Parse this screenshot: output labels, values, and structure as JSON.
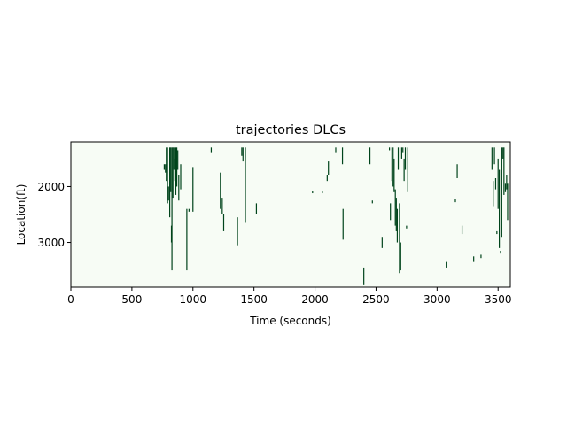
{
  "chart_data": {
    "type": "heatmap",
    "title": "trajectories DLCs",
    "xlabel": "Time (seconds)",
    "ylabel": "Location(ft)",
    "xlim": [
      0,
      3600
    ],
    "ylim": [
      3800,
      1200
    ],
    "x_ticks": [
      0,
      500,
      1000,
      1500,
      2000,
      2500,
      3000,
      3500
    ],
    "y_ticks": [
      2000,
      3000
    ],
    "colors": {
      "background": "#f7fcf5",
      "mark": "#00441b",
      "axis": "#000000"
    },
    "segments": [
      {
        "t": 765,
        "y0": 1600,
        "y1": 1700
      },
      {
        "t": 775,
        "y0": 1600,
        "y1": 1750
      },
      {
        "t": 782,
        "y0": 1300,
        "y1": 1900
      },
      {
        "t": 792,
        "y0": 1300,
        "y1": 2300
      },
      {
        "t": 800,
        "y0": 2000,
        "y1": 2250
      },
      {
        "t": 810,
        "y0": 1300,
        "y1": 2550
      },
      {
        "t": 818,
        "y0": 1300,
        "y1": 2100
      },
      {
        "t": 824,
        "y0": 2700,
        "y1": 3000
      },
      {
        "t": 828,
        "y0": 1300,
        "y1": 3500
      },
      {
        "t": 836,
        "y0": 1300,
        "y1": 2200
      },
      {
        "t": 844,
        "y0": 1300,
        "y1": 1700
      },
      {
        "t": 852,
        "y0": 1500,
        "y1": 1900
      },
      {
        "t": 860,
        "y0": 1300,
        "y1": 2150
      },
      {
        "t": 868,
        "y0": 1300,
        "y1": 2000
      },
      {
        "t": 876,
        "y0": 1350,
        "y1": 1700
      },
      {
        "t": 884,
        "y0": 1800,
        "y1": 2250
      },
      {
        "t": 900,
        "y0": 1600,
        "y1": 2050
      },
      {
        "t": 950,
        "y0": 2400,
        "y1": 3500
      },
      {
        "t": 968,
        "y0": 2400,
        "y1": 2450
      },
      {
        "t": 1000,
        "y0": 1650,
        "y1": 2450
      },
      {
        "t": 1150,
        "y0": 1300,
        "y1": 1400
      },
      {
        "t": 1225,
        "y0": 1750,
        "y1": 2400
      },
      {
        "t": 1240,
        "y0": 2200,
        "y1": 2500
      },
      {
        "t": 1252,
        "y0": 2500,
        "y1": 2800
      },
      {
        "t": 1365,
        "y0": 2550,
        "y1": 3050
      },
      {
        "t": 1400,
        "y0": 1300,
        "y1": 1450
      },
      {
        "t": 1410,
        "y0": 1300,
        "y1": 1550
      },
      {
        "t": 1430,
        "y0": 1300,
        "y1": 2650
      },
      {
        "t": 1520,
        "y0": 2300,
        "y1": 2500
      },
      {
        "t": 1980,
        "y0": 2080,
        "y1": 2120
      },
      {
        "t": 2060,
        "y0": 2080,
        "y1": 2120
      },
      {
        "t": 2100,
        "y0": 1800,
        "y1": 1900
      },
      {
        "t": 2110,
        "y0": 1550,
        "y1": 1800
      },
      {
        "t": 2170,
        "y0": 1300,
        "y1": 1400
      },
      {
        "t": 2225,
        "y0": 1300,
        "y1": 1600
      },
      {
        "t": 2230,
        "y0": 2400,
        "y1": 2950
      },
      {
        "t": 2400,
        "y0": 3450,
        "y1": 3750
      },
      {
        "t": 2450,
        "y0": 1300,
        "y1": 1600
      },
      {
        "t": 2470,
        "y0": 2250,
        "y1": 2300
      },
      {
        "t": 2550,
        "y0": 2900,
        "y1": 3100
      },
      {
        "t": 2610,
        "y0": 1300,
        "y1": 1350
      },
      {
        "t": 2618,
        "y0": 2300,
        "y1": 2600
      },
      {
        "t": 2630,
        "y0": 1300,
        "y1": 1900
      },
      {
        "t": 2640,
        "y0": 1300,
        "y1": 2000
      },
      {
        "t": 2648,
        "y0": 1500,
        "y1": 2100
      },
      {
        "t": 2658,
        "y0": 2050,
        "y1": 2700
      },
      {
        "t": 2666,
        "y0": 2200,
        "y1": 2800
      },
      {
        "t": 2674,
        "y0": 2400,
        "y1": 3000
      },
      {
        "t": 2682,
        "y0": 1300,
        "y1": 1700
      },
      {
        "t": 2692,
        "y0": 2300,
        "y1": 3550
      },
      {
        "t": 2702,
        "y0": 3000,
        "y1": 3500
      },
      {
        "t": 2710,
        "y0": 1300,
        "y1": 1500
      },
      {
        "t": 2720,
        "y0": 1300,
        "y1": 1400
      },
      {
        "t": 2730,
        "y0": 1500,
        "y1": 1900
      },
      {
        "t": 2740,
        "y0": 1300,
        "y1": 1700
      },
      {
        "t": 2750,
        "y0": 2700,
        "y1": 2750
      },
      {
        "t": 2760,
        "y0": 1300,
        "y1": 2100
      },
      {
        "t": 3075,
        "y0": 3350,
        "y1": 3450
      },
      {
        "t": 3150,
        "y0": 2230,
        "y1": 2280
      },
      {
        "t": 3165,
        "y0": 1600,
        "y1": 1850
      },
      {
        "t": 3205,
        "y0": 2700,
        "y1": 2850
      },
      {
        "t": 3300,
        "y0": 3250,
        "y1": 3350
      },
      {
        "t": 3360,
        "y0": 3220,
        "y1": 3280
      },
      {
        "t": 3450,
        "y0": 1300,
        "y1": 1700
      },
      {
        "t": 3460,
        "y0": 1900,
        "y1": 2350
      },
      {
        "t": 3470,
        "y0": 1300,
        "y1": 1600
      },
      {
        "t": 3480,
        "y0": 1850,
        "y1": 2050
      },
      {
        "t": 3490,
        "y0": 2800,
        "y1": 2850
      },
      {
        "t": 3500,
        "y0": 1500,
        "y1": 2400
      },
      {
        "t": 3510,
        "y0": 1700,
        "y1": 3100
      },
      {
        "t": 3520,
        "y0": 3150,
        "y1": 3200
      },
      {
        "t": 3530,
        "y0": 1300,
        "y1": 2900
      },
      {
        "t": 3540,
        "y0": 1300,
        "y1": 1500
      },
      {
        "t": 3548,
        "y0": 1300,
        "y1": 2150
      },
      {
        "t": 3560,
        "y0": 1950,
        "y1": 2100
      },
      {
        "t": 3570,
        "y0": 1800,
        "y1": 2050
      },
      {
        "t": 3578,
        "y0": 1950,
        "y1": 2600
      }
    ]
  }
}
